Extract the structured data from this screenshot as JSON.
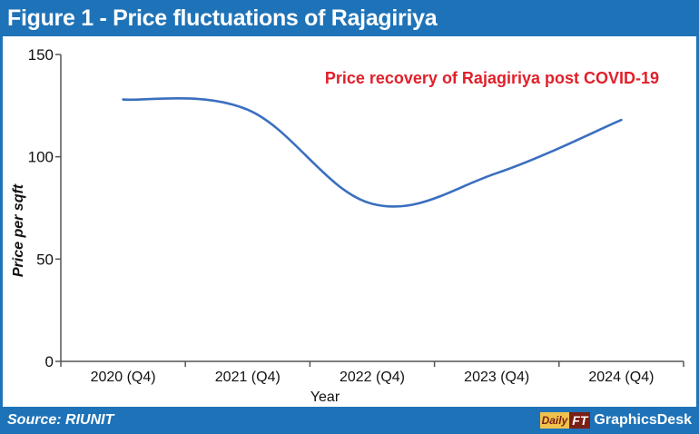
{
  "header": {
    "title": "Figure 1 - Price fluctuations of Rajagiriya"
  },
  "footer": {
    "source": "Source: RIUNIT",
    "logo_daily": "Daily",
    "logo_ft": "FT",
    "desk": "GraphicsDesk"
  },
  "colors": {
    "brand": "#1e73b8",
    "line": "#3a6fbf",
    "annotation": "#e0202a"
  },
  "chart_data": {
    "type": "line",
    "categories": [
      "2020 (Q4)",
      "2021 (Q4)",
      "2022 (Q4)",
      "2023 (Q4)",
      "2024 (Q4)"
    ],
    "series": [
      {
        "name": "Price per sqft",
        "values": [
          128,
          123,
          77,
          92,
          118
        ]
      }
    ],
    "xlabel": "Year",
    "ylabel": "Price per sqft",
    "ylim": [
      0,
      150
    ],
    "yticks": [
      0,
      50,
      100,
      150
    ],
    "annotation": "Price recovery of Rajagiriya post COVID-19",
    "grid": false,
    "smooth": true
  }
}
